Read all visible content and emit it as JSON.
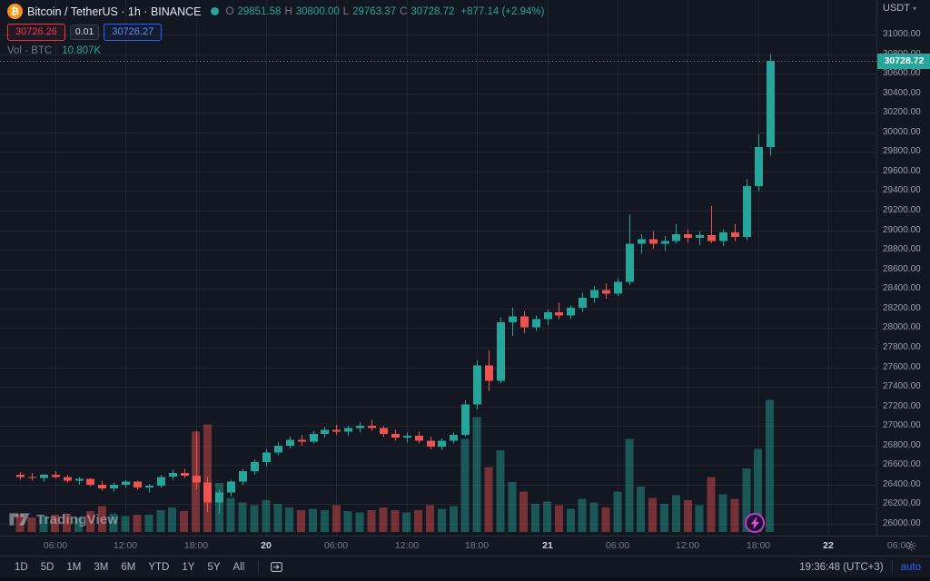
{
  "header": {
    "symbol_title": "Bitcoin / TetherUS · 1h · BINANCE",
    "ohlc": {
      "o_label": "O",
      "o_value": "29851.58",
      "h_label": "H",
      "h_value": "30800.00",
      "l_label": "L",
      "l_value": "29763.37",
      "c_label": "C",
      "c_value": "30728.72",
      "change": "+877.14 (+2.94%)"
    },
    "sell_price": "30726.26",
    "spread": "0.01",
    "buy_price": "30726.27",
    "volume_label": "Vol · BTC",
    "volume_value": "10.807K"
  },
  "price_scale": {
    "currency": "USDT",
    "last_price_label": "30728.72"
  },
  "footer": {
    "ranges": [
      "1D",
      "5D",
      "1M",
      "3M",
      "6M",
      "YTD",
      "1Y",
      "5Y",
      "All"
    ],
    "clock": "19:36:48 (UTC+3)",
    "scale_mode": "auto"
  },
  "watermark_text": "TradingView",
  "icons": {
    "bitcoin_glyph": "₿",
    "caret": "▾"
  },
  "colors": {
    "up": "#26a69a",
    "down": "#ef5350",
    "volume_up": "rgba(38,166,154,0.45)",
    "volume_down": "rgba(239,83,80,0.45)",
    "grid": "rgba(42,46,57,0.6)",
    "price_line": "#787b86",
    "buy_blue": "#2962ff",
    "sell_red": "#f23645",
    "bitcoin_orange": "#f7931a"
  },
  "chart_data": {
    "type": "candlestick",
    "title": "Bitcoin / TetherUS 1h BINANCE",
    "interval": "1h",
    "ylabel": "Price (USDT)",
    "ylim": [
      26000,
      31000
    ],
    "y_tick_step": 200,
    "volume_scale_max": 11000,
    "last_price": 30728.72,
    "time_ticks": [
      {
        "i": 3,
        "label": "06:00",
        "day": false
      },
      {
        "i": 9,
        "label": "12:00",
        "day": false
      },
      {
        "i": 15,
        "label": "18:00",
        "day": false
      },
      {
        "i": 21,
        "label": "20",
        "day": true
      },
      {
        "i": 27,
        "label": "06:00",
        "day": false
      },
      {
        "i": 33,
        "label": "12:00",
        "day": false
      },
      {
        "i": 39,
        "label": "18:00",
        "day": false
      },
      {
        "i": 45,
        "label": "21",
        "day": true
      },
      {
        "i": 51,
        "label": "06:00",
        "day": false
      },
      {
        "i": 57,
        "label": "12:00",
        "day": false
      },
      {
        "i": 63,
        "label": "18:00",
        "day": false
      },
      {
        "i": 69,
        "label": "22",
        "day": true
      },
      {
        "i": 75,
        "label": "06:00",
        "day": false
      }
    ],
    "candles_format": [
      "open",
      "high",
      "low",
      "close",
      "volume_btc"
    ],
    "candles": [
      [
        26500,
        26530,
        26450,
        26480,
        1500
      ],
      [
        26480,
        26520,
        26440,
        26470,
        1200
      ],
      [
        26470,
        26510,
        26430,
        26500,
        1300
      ],
      [
        26500,
        26540,
        26460,
        26480,
        1400
      ],
      [
        26480,
        26500,
        26420,
        26440,
        1500
      ],
      [
        26440,
        26480,
        26400,
        26460,
        1200
      ],
      [
        26460,
        26470,
        26380,
        26400,
        1700
      ],
      [
        26400,
        26440,
        26340,
        26360,
        2100
      ],
      [
        26360,
        26420,
        26330,
        26400,
        1500
      ],
      [
        26400,
        26450,
        26370,
        26430,
        1300
      ],
      [
        26430,
        26440,
        26350,
        26370,
        1400
      ],
      [
        26370,
        26410,
        26320,
        26390,
        1400
      ],
      [
        26390,
        26500,
        26370,
        26480,
        1800
      ],
      [
        26480,
        26550,
        26450,
        26520,
        2000
      ],
      [
        26520,
        26560,
        26470,
        26490,
        1700
      ],
      [
        26490,
        26950,
        26350,
        26420,
        8200
      ],
      [
        26420,
        26480,
        26120,
        26220,
        8800
      ],
      [
        26220,
        26350,
        26100,
        26320,
        4000
      ],
      [
        26320,
        26450,
        26280,
        26430,
        2800
      ],
      [
        26430,
        26560,
        26400,
        26540,
        2400
      ],
      [
        26540,
        26660,
        26500,
        26630,
        2200
      ],
      [
        26630,
        26760,
        26590,
        26730,
        2600
      ],
      [
        26730,
        26830,
        26700,
        26800,
        2300
      ],
      [
        26800,
        26890,
        26770,
        26860,
        2000
      ],
      [
        26860,
        26910,
        26800,
        26840,
        1800
      ],
      [
        26840,
        26950,
        26820,
        26920,
        1900
      ],
      [
        26920,
        26990,
        26880,
        26960,
        1800
      ],
      [
        26960,
        27010,
        26910,
        26940,
        2200
      ],
      [
        26940,
        27000,
        26900,
        26980,
        1700
      ],
      [
        26980,
        27040,
        26930,
        27000,
        1600
      ],
      [
        27000,
        27060,
        26950,
        26980,
        1800
      ],
      [
        26980,
        27000,
        26890,
        26920,
        2000
      ],
      [
        26920,
        26960,
        26850,
        26880,
        1800
      ],
      [
        26880,
        26930,
        26830,
        26900,
        1600
      ],
      [
        26900,
        26940,
        26820,
        26850,
        1800
      ],
      [
        26850,
        26890,
        26760,
        26790,
        2200
      ],
      [
        26790,
        26870,
        26750,
        26850,
        1900
      ],
      [
        26850,
        26930,
        26820,
        26910,
        2100
      ],
      [
        26910,
        27260,
        26890,
        27220,
        7600
      ],
      [
        27220,
        27670,
        27170,
        27620,
        9400
      ],
      [
        27620,
        27770,
        27360,
        27460,
        5300
      ],
      [
        27460,
        28110,
        27440,
        28060,
        6700
      ],
      [
        28060,
        28210,
        27920,
        28120,
        4100
      ],
      [
        28120,
        28170,
        27950,
        28010,
        3300
      ],
      [
        28010,
        28130,
        27970,
        28090,
        2300
      ],
      [
        28090,
        28190,
        28030,
        28160,
        2500
      ],
      [
        28160,
        28260,
        28090,
        28130,
        2200
      ],
      [
        28130,
        28230,
        28090,
        28210,
        1900
      ],
      [
        28210,
        28360,
        28160,
        28310,
        2700
      ],
      [
        28310,
        28430,
        28260,
        28390,
        2400
      ],
      [
        28390,
        28460,
        28300,
        28350,
        2000
      ],
      [
        28350,
        28510,
        28330,
        28470,
        3300
      ],
      [
        28470,
        29160,
        28440,
        28860,
        7600
      ],
      [
        28860,
        28960,
        28760,
        28910,
        3700
      ],
      [
        28910,
        28990,
        28810,
        28860,
        2800
      ],
      [
        28860,
        28940,
        28790,
        28890,
        2300
      ],
      [
        28890,
        29060,
        28860,
        28960,
        3000
      ],
      [
        28960,
        29010,
        28870,
        28920,
        2600
      ],
      [
        28920,
        28990,
        28850,
        28950,
        2200
      ],
      [
        28950,
        29250,
        28870,
        28890,
        4500
      ],
      [
        28890,
        29010,
        28840,
        28980,
        3100
      ],
      [
        28980,
        29060,
        28890,
        28930,
        2700
      ],
      [
        28930,
        29520,
        28900,
        29450,
        5200
      ],
      [
        29450,
        29980,
        29400,
        29851.58,
        6800
      ],
      [
        29851.58,
        30800,
        29763.37,
        30728.72,
        10807
      ]
    ]
  }
}
